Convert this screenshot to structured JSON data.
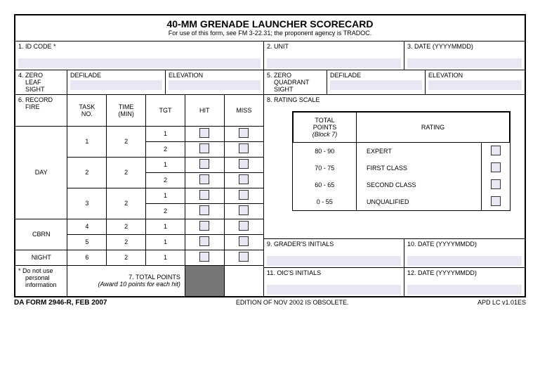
{
  "title": "40-MM GRENADE LAUNCHER SCORECARD",
  "subtitle": "For use of this form, see FM 3-22.31; the proponent agency is TRADOC.",
  "fields": {
    "f1": "1.  ID CODE *",
    "f2": "2.  UNIT",
    "f3": "3.  DATE  (YYYYMMDD)",
    "f4a": "4.  ZERO",
    "f4b": "LEAF",
    "f4c": "SIGHT",
    "defilade": "DEFILADE",
    "elevation": "ELEVATION",
    "f5a": "5.  ZERO",
    "f5b": "QUADRANT",
    "f5c": "SIGHT",
    "f6a": "6.  RECORD",
    "f6b": "FIRE",
    "taskno": "TASK NO.",
    "timemin": "TIME (MIN)",
    "tgt": "TGT",
    "hit": "HIT",
    "miss": "MISS",
    "f8": "8.  RATING SCALE",
    "day": "DAY",
    "cbrn": "CBRN",
    "night": "NIGHT",
    "f7a": "7.  TOTAL POINTS",
    "f7b": "(Award 10 points for each hit)",
    "note1": "*   Do not use",
    "note2": "personal",
    "note3": "information",
    "f9": "9.  GRADER'S INITIALS",
    "f10": "10.  DATE  (YYYYMMDD)",
    "f11": "11.  OIC'S INITIALS",
    "f12": "12.  DATE  (YYYYMMDD)"
  },
  "record_fire": [
    {
      "period": "DAY",
      "task": "1",
      "time": "2",
      "tgts": [
        "1",
        "2"
      ]
    },
    {
      "period": "DAY",
      "task": "2",
      "time": "2",
      "tgts": [
        "1",
        "2"
      ]
    },
    {
      "period": "DAY",
      "task": "3",
      "time": "2",
      "tgts": [
        "1",
        "2"
      ]
    },
    {
      "period": "CBRN",
      "task": "4",
      "time": "2",
      "tgts": [
        "1"
      ]
    },
    {
      "period": "CBRN",
      "task": "5",
      "time": "2",
      "tgts": [
        "1"
      ]
    },
    {
      "period": "NIGHT",
      "task": "6",
      "time": "2",
      "tgts": [
        "1"
      ]
    }
  ],
  "rating": {
    "h1a": "TOTAL",
    "h1b": "POINTS",
    "h1c": "(Block 7)",
    "h2": "RATING",
    "rows": [
      {
        "range": "80 - 90",
        "name": "EXPERT"
      },
      {
        "range": "70 - 75",
        "name": "FIRST CLASS"
      },
      {
        "range": "60 - 65",
        "name": "SECOND CLASS"
      },
      {
        "range": "0 - 55",
        "name": "UNQUALIFIED"
      }
    ]
  },
  "footer": {
    "left": "DA FORM 2946-R, FEB 2007",
    "center": "EDITION OF NOV 2002 IS OBSOLETE.",
    "right": "APD LC v1.01ES"
  },
  "layout": {
    "col_w": {
      "period": 74,
      "task": 56,
      "time": 56,
      "tgt": 56,
      "hit": 56,
      "miss": 56
    }
  }
}
